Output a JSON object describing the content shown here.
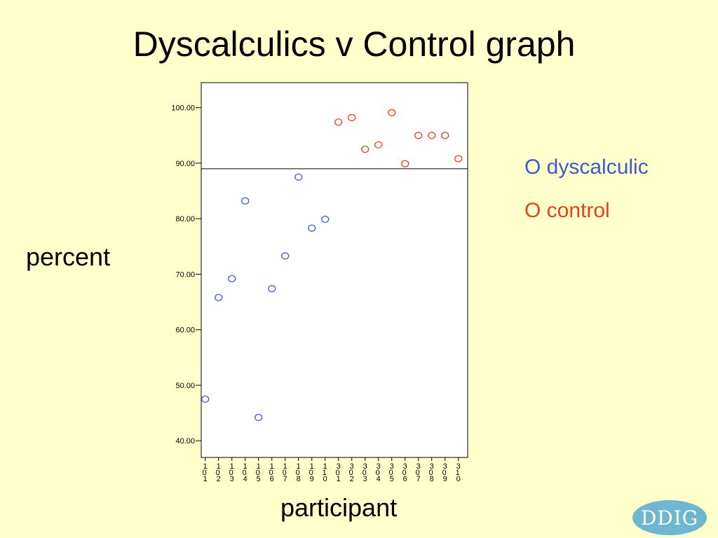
{
  "slide": {
    "title": "Dyscalculics v Control graph",
    "logo_text": "DDIG"
  },
  "legend": {
    "dyscalculic": "O dyscalculic",
    "control": "O control"
  },
  "colors": {
    "background": "#ffffcc",
    "dyscalculic": "#3b5cc4",
    "control": "#e8401a"
  },
  "chart_data": {
    "type": "scatter",
    "title": "",
    "xlabel": "participant",
    "ylabel": "percent",
    "ylim": [
      37.0,
      104.5
    ],
    "yticks": [
      "40.00",
      "50.00",
      "60.00",
      "70.00",
      "80.00",
      "90.00",
      "100.00"
    ],
    "categories": [
      "101",
      "102",
      "103",
      "104",
      "105",
      "106",
      "107",
      "108",
      "109",
      "110",
      "301",
      "302",
      "303",
      "304",
      "305",
      "306",
      "307",
      "308",
      "309",
      "310"
    ],
    "reference_line_y": 89.0,
    "series": [
      {
        "name": "dyscalculic",
        "x": [
          "101",
          "102",
          "103",
          "104",
          "105",
          "106",
          "107",
          "108",
          "109",
          "110"
        ],
        "y": [
          47.5,
          65.8,
          69.2,
          83.2,
          44.2,
          67.4,
          73.3,
          87.5,
          78.3,
          79.9
        ]
      },
      {
        "name": "control",
        "x": [
          "301",
          "302",
          "303",
          "304",
          "305",
          "306",
          "307",
          "308",
          "309",
          "310"
        ],
        "y": [
          97.4,
          98.2,
          92.5,
          93.3,
          99.1,
          89.9,
          95.0,
          95.0,
          95.0,
          90.8
        ]
      }
    ]
  }
}
